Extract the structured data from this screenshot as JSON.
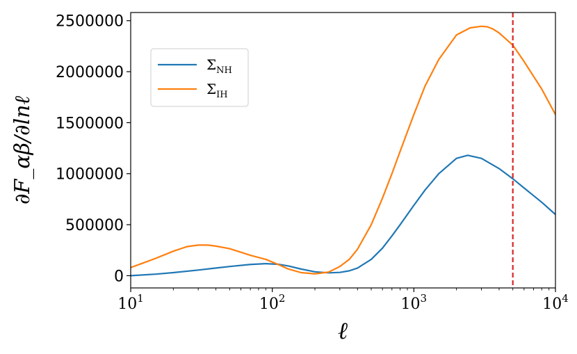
{
  "chart_data": {
    "type": "line",
    "title": "",
    "xlabel": "ℓ",
    "ylabel": "∂F_αβ/∂lnℓ",
    "xscale": "log",
    "xlim": [
      10,
      10000
    ],
    "ylim": [
      -120000,
      2580000
    ],
    "xticks": [
      {
        "base": "10",
        "exp": "1",
        "value": 10
      },
      {
        "base": "10",
        "exp": "2",
        "value": 100
      },
      {
        "base": "10",
        "exp": "3",
        "value": 1000
      },
      {
        "base": "10",
        "exp": "4",
        "value": 10000
      }
    ],
    "yticks": [
      "0",
      "500000",
      "1000000",
      "1500000",
      "2000000",
      "2500000"
    ],
    "ytick_values": [
      0,
      500000,
      1000000,
      1500000,
      2000000,
      2500000
    ],
    "grid": false,
    "legend_position": "upper-left",
    "vline": {
      "x": 5000,
      "color": "#d62728",
      "style": "dashed"
    },
    "series": [
      {
        "name": "Σ",
        "sub": "NH",
        "color": "#1f77b4",
        "x": [
          10,
          15,
          20,
          30,
          40,
          50,
          70,
          90,
          110,
          130,
          160,
          200,
          250,
          300,
          350,
          400,
          500,
          600,
          700,
          800,
          1000,
          1200,
          1500,
          2000,
          2400,
          3000,
          4000,
          5000,
          6000,
          8000,
          10000
        ],
        "y": [
          0,
          15000,
          30000,
          55000,
          75000,
          90000,
          110000,
          118000,
          112000,
          95000,
          65000,
          38000,
          28000,
          32000,
          48000,
          75000,
          160000,
          270000,
          390000,
          500000,
          690000,
          840000,
          1000000,
          1150000,
          1180000,
          1150000,
          1050000,
          950000,
          860000,
          720000,
          600000
        ]
      },
      {
        "name": "Σ",
        "sub": "IH",
        "color": "#ff7f0e",
        "x": [
          10,
          12,
          15,
          20,
          25,
          30,
          35,
          40,
          50,
          60,
          70,
          90,
          110,
          130,
          160,
          200,
          250,
          300,
          350,
          400,
          500,
          600,
          700,
          800,
          1000,
          1200,
          1500,
          2000,
          2500,
          3000,
          3300,
          3600,
          4000,
          5000,
          6000,
          8000,
          10000
        ],
        "y": [
          80000,
          120000,
          170000,
          240000,
          285000,
          300000,
          300000,
          290000,
          265000,
          230000,
          200000,
          160000,
          110000,
          65000,
          30000,
          18000,
          35000,
          90000,
          160000,
          260000,
          500000,
          760000,
          1000000,
          1220000,
          1580000,
          1860000,
          2120000,
          2360000,
          2430000,
          2445000,
          2440000,
          2420000,
          2380000,
          2260000,
          2100000,
          1830000,
          1580000
        ]
      }
    ]
  }
}
